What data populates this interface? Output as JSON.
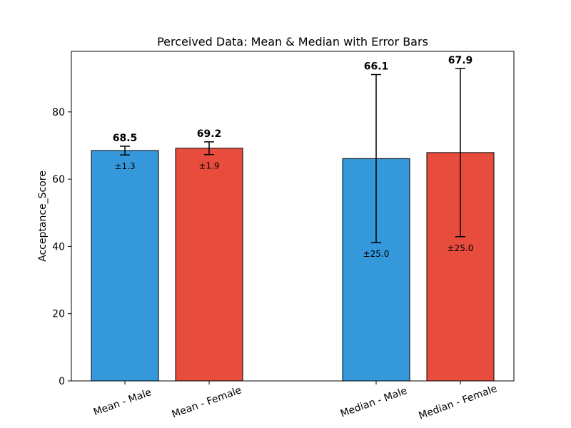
{
  "chart_data": {
    "type": "bar",
    "title": "Perceived Data: Mean & Median with Error Bars",
    "xlabel": "",
    "ylabel": "Acceptance_Score",
    "ylim": [
      0,
      98
    ],
    "yticks": [
      0,
      20,
      40,
      60,
      80
    ],
    "grid": false,
    "categories": [
      "Mean - Male",
      "Mean - Female",
      "Median - Male",
      "Median - Female"
    ],
    "values": [
      68.5,
      69.2,
      66.1,
      67.9
    ],
    "errors": [
      1.3,
      1.9,
      25.0,
      25.0
    ],
    "value_labels": [
      "68.5",
      "69.2",
      "66.1",
      "67.9"
    ],
    "error_labels": [
      "±1.3",
      "±1.9",
      "±25.0",
      "±25.0"
    ],
    "colors": [
      "#3498db",
      "#e74c3c",
      "#3498db",
      "#e74c3c"
    ]
  }
}
